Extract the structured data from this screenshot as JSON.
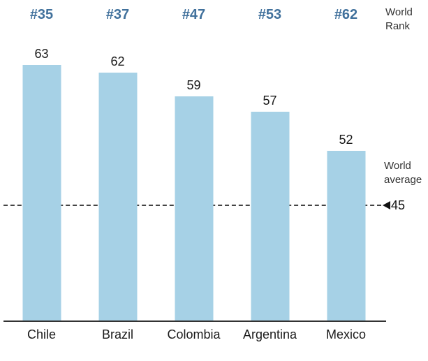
{
  "chart_data": {
    "type": "bar",
    "title": "",
    "categories": [
      "Chile",
      "Brazil",
      "Colombia",
      "Argentina",
      "Mexico"
    ],
    "values": [
      63,
      62,
      59,
      57,
      52
    ],
    "ranks": [
      "#35",
      "#37",
      "#47",
      "#53",
      "#62"
    ],
    "world_average": 45,
    "xlabel": "",
    "ylabel": "",
    "ylim": [
      30,
      66
    ],
    "grid": false,
    "legend": "none",
    "annotations": {
      "world_rank_label": "World\nRank",
      "world_average_label": "World\naverage",
      "world_average_value": "45"
    },
    "colors": {
      "bar": "#A6D1E6",
      "rank_text": "#41719C",
      "value_text": "#1a1a1a",
      "axis": "#333333",
      "average_line": "#444444"
    }
  }
}
